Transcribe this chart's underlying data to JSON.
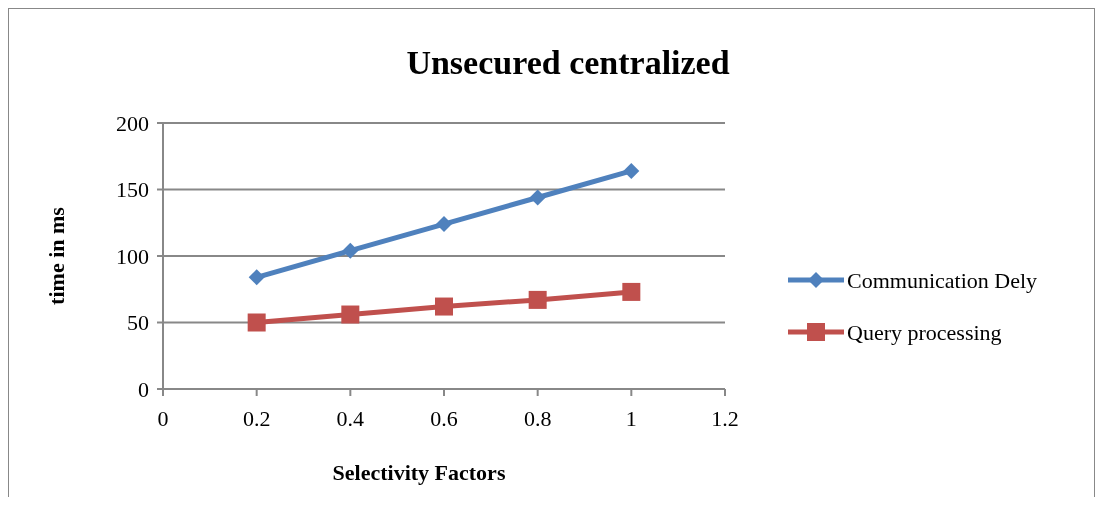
{
  "chart_data": {
    "type": "line",
    "title": "Unsecured centralized",
    "xlabel": "Selectivity Factors",
    "ylabel": "time in ms",
    "x": [
      0.2,
      0.4,
      0.6,
      0.8,
      1
    ],
    "series": [
      {
        "name": "Communication Dely",
        "color": "#4f81bd",
        "values": [
          84,
          104,
          124,
          144,
          164
        ],
        "marker": "diamond"
      },
      {
        "name": "Query processing",
        "color": "#c0504d",
        "values": [
          50,
          56,
          62,
          67,
          73
        ],
        "marker": "square"
      }
    ],
    "xlim": [
      0,
      1.2
    ],
    "xticks": [
      0,
      {
        "value": 0.2,
        "label": "0.2"
      },
      {
        "value": 0.4,
        "label": "0.4"
      },
      {
        "value": 0.6,
        "label": "0.6"
      },
      {
        "value": 0.8,
        "label": "0.8"
      },
      1,
      {
        "value": 1.2,
        "label": "1.2"
      }
    ],
    "ylim": [
      0,
      200
    ],
    "yticks": [
      0,
      50,
      100,
      150,
      200
    ],
    "grid": "y",
    "legend": "right"
  }
}
